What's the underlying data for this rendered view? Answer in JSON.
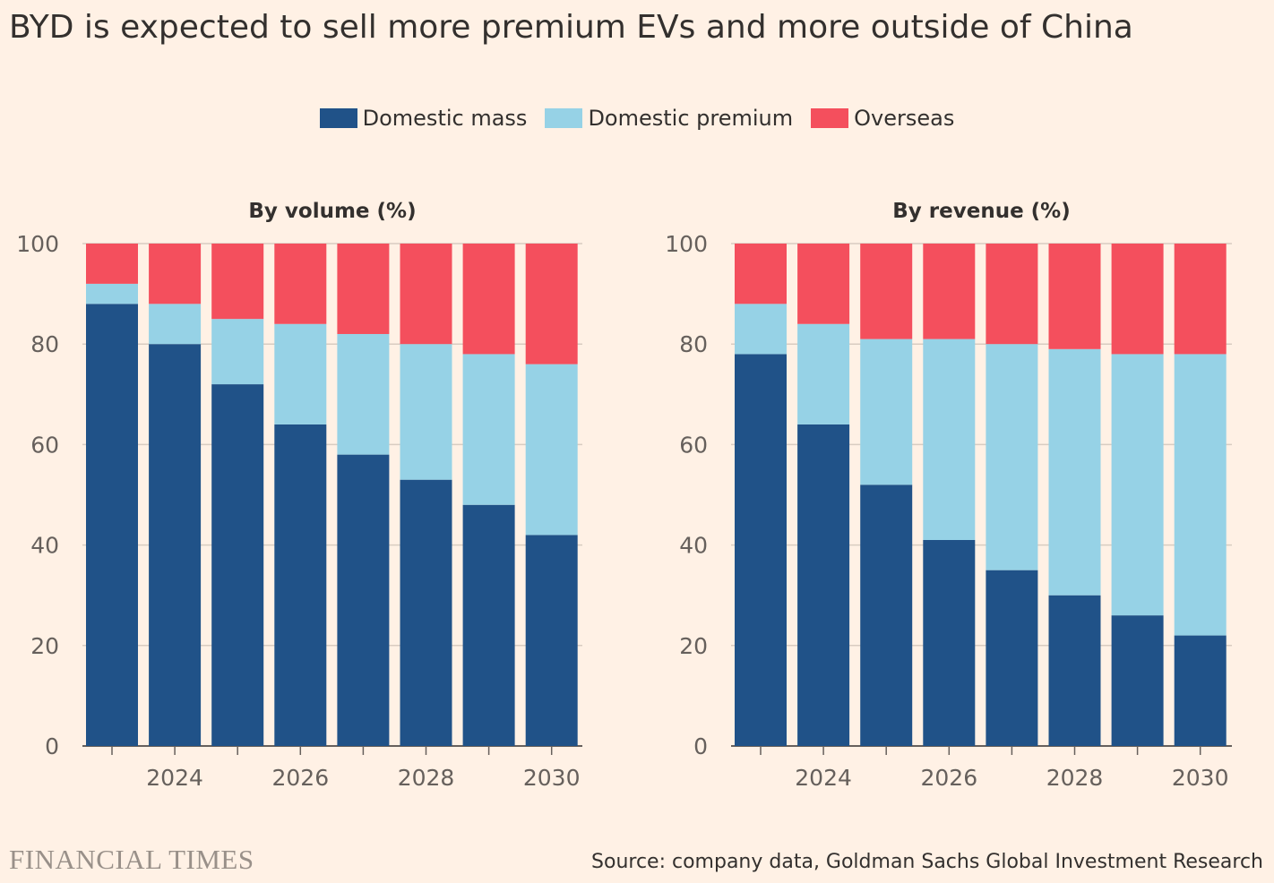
{
  "title": "BYD is expected to sell more premium EVs and more outside of China",
  "legend": [
    {
      "label": "Domestic mass",
      "color": "#205288"
    },
    {
      "label": "Domestic premium",
      "color": "#96D2E6"
    },
    {
      "label": "Overseas",
      "color": "#F44F5D"
    }
  ],
  "footer": {
    "logo_text": "FINANCIAL TIMES",
    "source": "Source: company data, Goldman Sachs Global Investment Research"
  },
  "chart_data": [
    {
      "type": "bar",
      "stacked": true,
      "title": "By volume (%)",
      "categories": [
        2023,
        2024,
        2025,
        2026,
        2027,
        2028,
        2029,
        2030
      ],
      "x_tick_labels": [
        "2024",
        "2026",
        "2028",
        "2030"
      ],
      "ylim": [
        0,
        100
      ],
      "y_ticks": [
        0,
        20,
        40,
        60,
        80,
        100
      ],
      "grid": true,
      "series": [
        {
          "name": "Domestic mass",
          "color": "#205288",
          "values": [
            88,
            80,
            72,
            64,
            58,
            53,
            48,
            42
          ]
        },
        {
          "name": "Domestic premium",
          "color": "#96D2E6",
          "values": [
            4,
            8,
            13,
            20,
            24,
            27,
            30,
            34
          ]
        },
        {
          "name": "Overseas",
          "color": "#F44F5D",
          "values": [
            8,
            12,
            15,
            16,
            18,
            20,
            22,
            24
          ]
        }
      ]
    },
    {
      "type": "bar",
      "stacked": true,
      "title": "By revenue (%)",
      "categories": [
        2023,
        2024,
        2025,
        2026,
        2027,
        2028,
        2029,
        2030
      ],
      "x_tick_labels": [
        "2024",
        "2026",
        "2028",
        "2030"
      ],
      "ylim": [
        0,
        100
      ],
      "y_ticks": [
        0,
        20,
        40,
        60,
        80,
        100
      ],
      "grid": true,
      "series": [
        {
          "name": "Domestic mass",
          "color": "#205288",
          "values": [
            78,
            64,
            52,
            41,
            35,
            30,
            26,
            22
          ]
        },
        {
          "name": "Domestic premium",
          "color": "#96D2E6",
          "values": [
            10,
            20,
            29,
            40,
            45,
            49,
            52,
            56
          ]
        },
        {
          "name": "Overseas",
          "color": "#F44F5D",
          "values": [
            12,
            16,
            19,
            19,
            20,
            21,
            22,
            22
          ]
        }
      ]
    }
  ]
}
